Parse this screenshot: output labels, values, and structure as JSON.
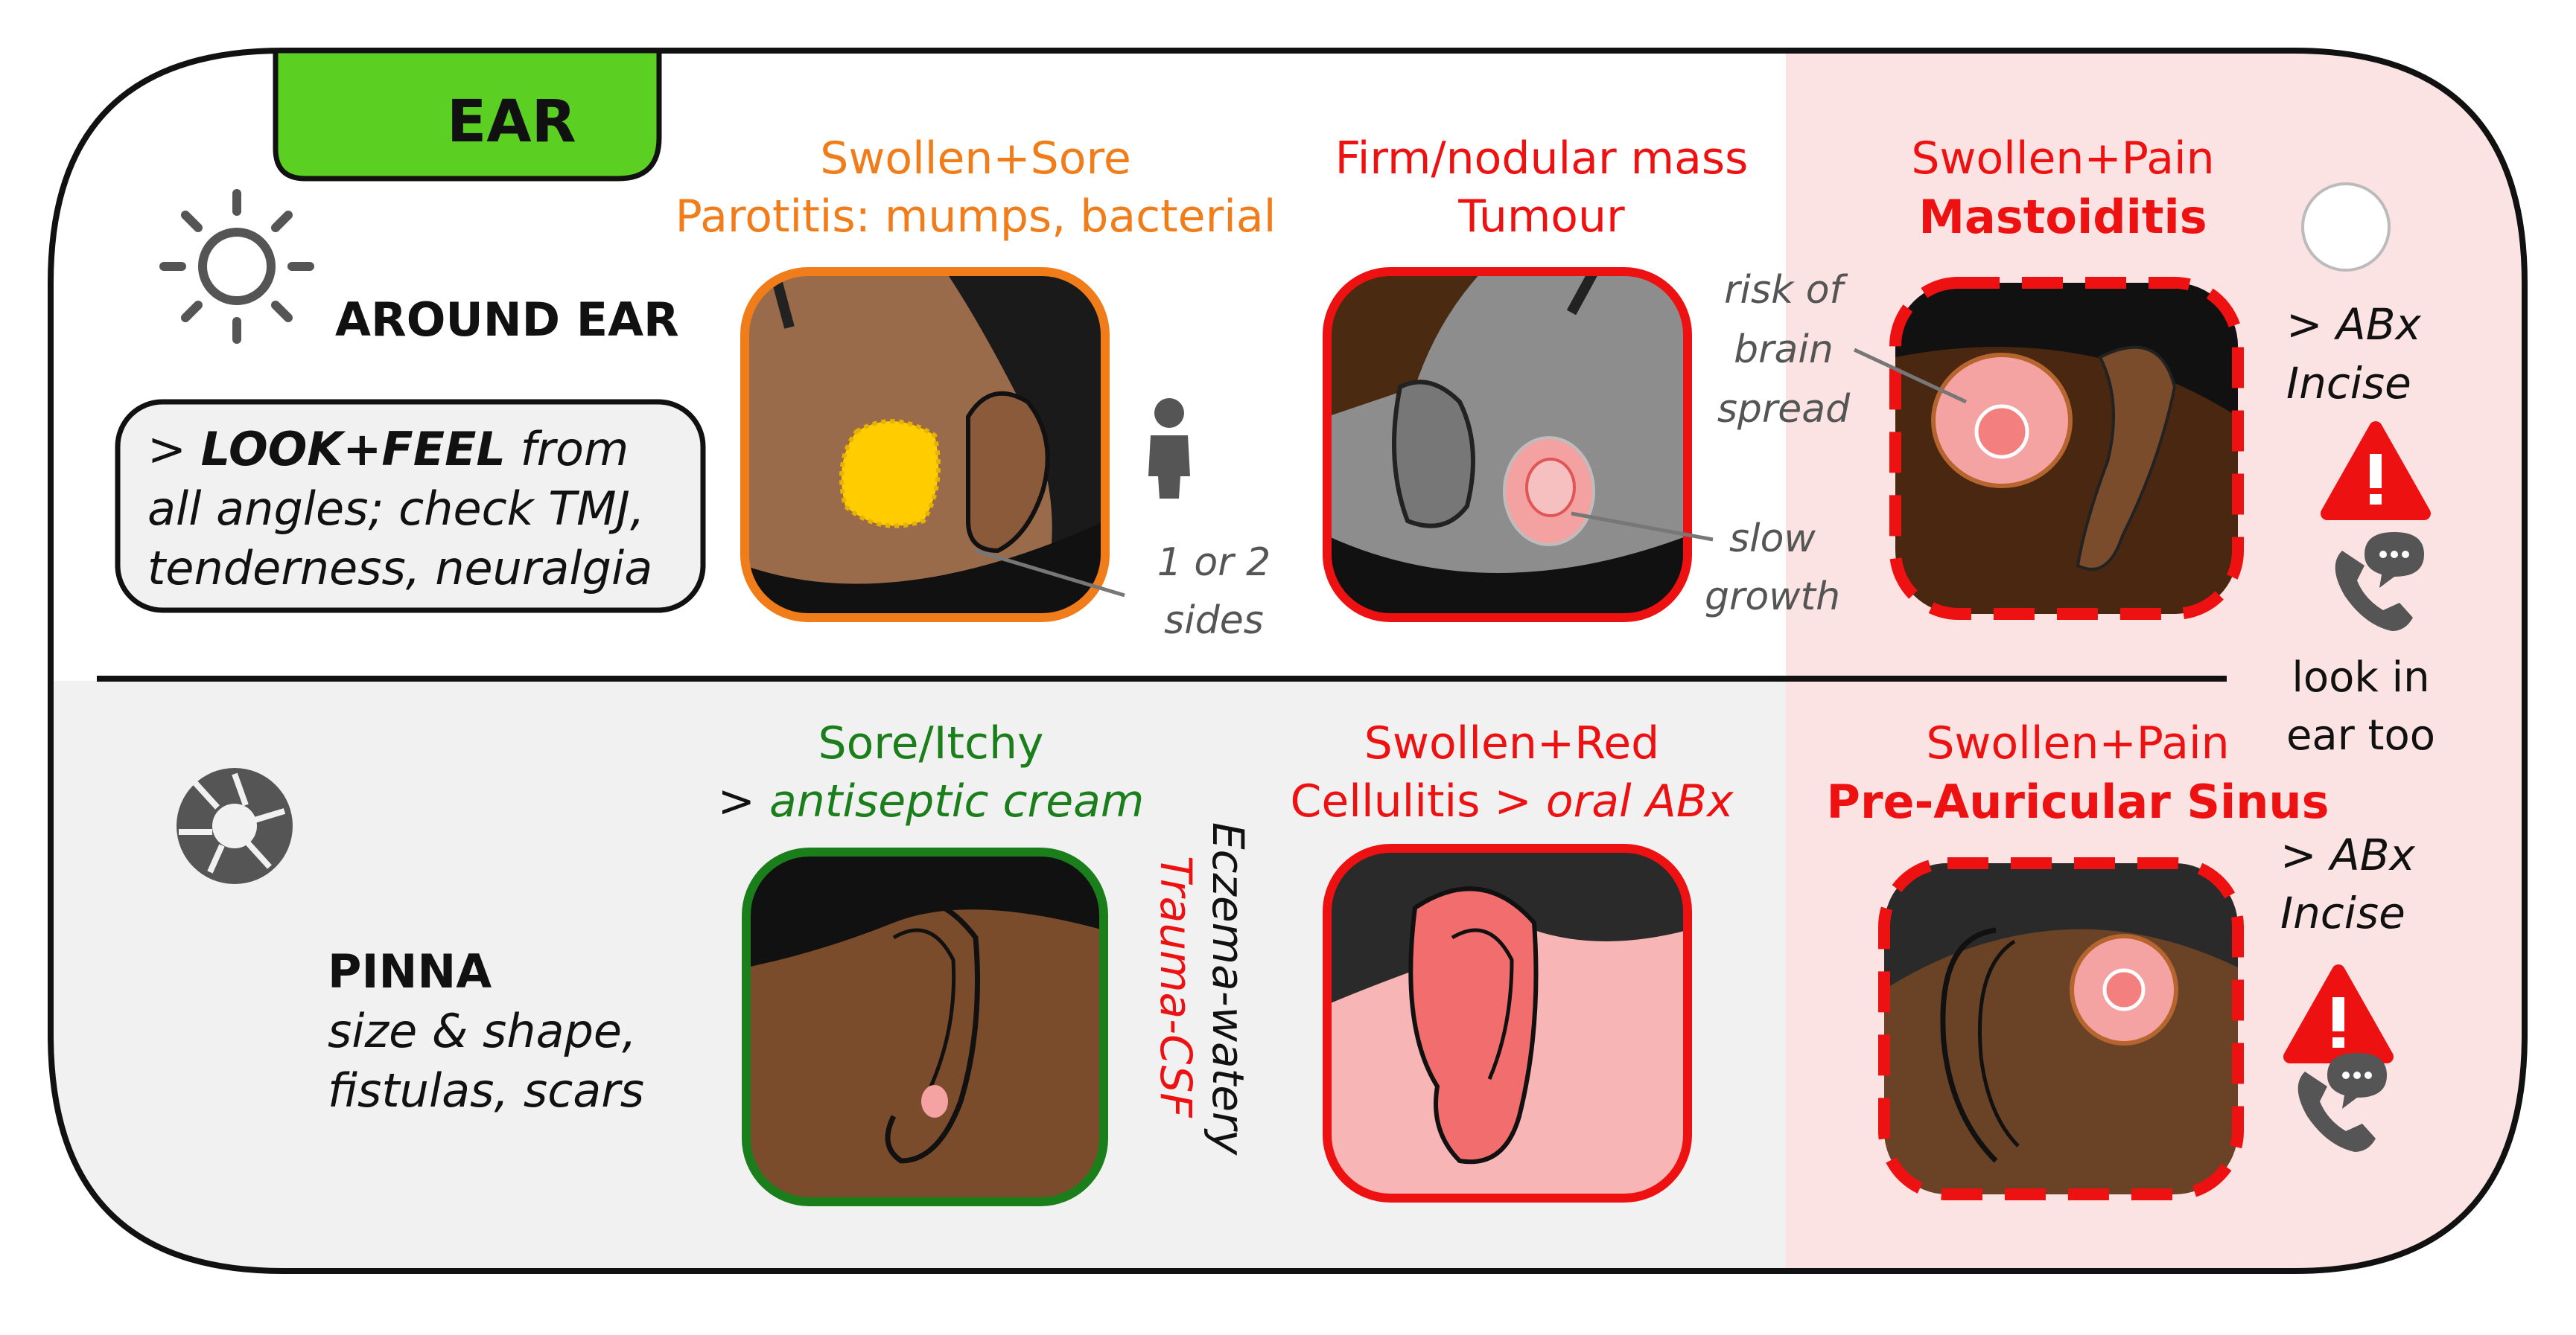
{
  "colors": {
    "orange": "#f07d1a",
    "red": "#ee1111",
    "green": "#1a7e1a",
    "tab_green": "#5bd022",
    "danger_panel": "#fbe3e3",
    "lower_panel": "#f1f1f1",
    "skin_brown": "#7a4c2c",
    "skin_mid": "#9a6b4b",
    "grey_text": "#555555"
  },
  "tab": {
    "label": "EAR"
  },
  "around_ear": {
    "icon": "sun-icon",
    "heading": "AROUND EAR",
    "advice_line1_prefix": ">",
    "advice_line1_bold": "LOOK+FEEL",
    "advice_line1_rest": "from",
    "advice_line2": "all angles; check TMJ,",
    "advice_line3": "tenderness, neuralgia",
    "parotitis": {
      "title": "Swollen+Sore",
      "subtitle": "Parotitis: mumps, bacterial",
      "person_icon": "person-icon",
      "note_line1": "1 or 2",
      "note_line2": "sides"
    },
    "tumour": {
      "title": "Firm/nodular mass",
      "subtitle": "Tumour",
      "note_line1": "slow",
      "note_line2": "growth"
    },
    "mastoiditis": {
      "title": "Swollen+Pain",
      "subtitle": "Mastoiditis",
      "note_line1": "risk of",
      "note_line2": "brain",
      "note_line3": "spread",
      "action_line1": "> ABx",
      "action_line2": "Incise",
      "warning_icon": "warning-icon",
      "phone_icon": "phone-chat-icon"
    }
  },
  "side_note": {
    "line1": "look in",
    "line2": "ear too"
  },
  "pinna": {
    "icon": "camera-shutter-icon",
    "heading": "PINNA",
    "desc_line1": "size & shape,",
    "desc_line2": "fistulas, scars",
    "eczema": {
      "title": "Sore/Itchy",
      "action_prefix": ">",
      "action": "antiseptic cream",
      "vertical_line1": "Eczema-watery",
      "vertical_line2": "Trauma-CSF"
    },
    "cellulitis": {
      "title": "Swollen+Red",
      "subtitle_prefix": "Cellulitis >",
      "subtitle_action": "oral ABx"
    },
    "sinus": {
      "title": "Swollen+Pain",
      "subtitle": "Pre-Auricular Sinus",
      "action_line1": "> ABx",
      "action_line2": "Incise",
      "warning_icon": "warning-icon",
      "phone_icon": "phone-chat-icon"
    }
  }
}
